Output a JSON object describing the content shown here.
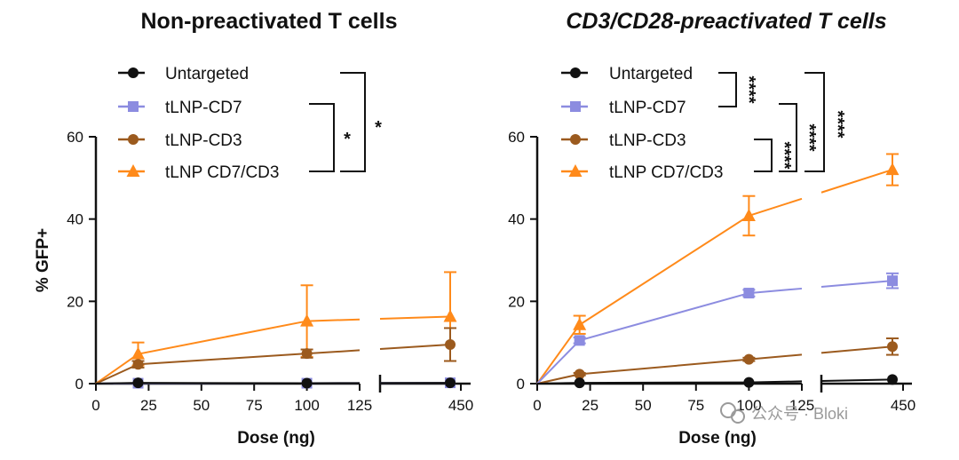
{
  "colors": {
    "untargeted": "#111111",
    "cd7": "#8c8ce0",
    "cd3": "#9b5a1e",
    "cd7cd3": "#ff8a1a",
    "axis": "#111111"
  },
  "watermark": "公众号 · Bloki",
  "chart_data": [
    {
      "type": "line",
      "title": "Non-preactivated T cells",
      "title_italic": false,
      "xlabel": "Dose (ng)",
      "ylabel": "% GFP+",
      "xlim_segment1": [
        0,
        125
      ],
      "xlim_segment2_tick": 450,
      "ylim": [
        0,
        60
      ],
      "yticks": [
        "0",
        "20",
        "40",
        "60"
      ],
      "xticks": [
        "0",
        "25",
        "50",
        "75",
        "100",
        "125",
        "450"
      ],
      "legend": [
        "Untargeted",
        "tLNP-CD7",
        "tLNP-CD3",
        "tLNP CD7/CD3"
      ],
      "significance": [
        {
          "between": [
            "tLNP-CD7",
            "tLNP CD7/CD3"
          ],
          "label": "*"
        },
        {
          "between": [
            "Untargeted",
            "tLNP CD7/CD3"
          ],
          "label": "*"
        }
      ],
      "series": [
        {
          "name": "Untargeted",
          "key": "untargeted",
          "marker": "circle",
          "points": [
            {
              "x": 0,
              "y": 0
            },
            {
              "x": 20,
              "y": 0.2
            },
            {
              "x": 100,
              "y": 0.1
            },
            {
              "x": 400,
              "y": 0.2
            }
          ],
          "err": [
            0,
            0,
            0,
            0
          ]
        },
        {
          "name": "tLNP-CD7",
          "key": "cd7",
          "marker": "square",
          "points": [
            {
              "x": 0,
              "y": 0
            },
            {
              "x": 20,
              "y": 0.1
            },
            {
              "x": 100,
              "y": 0.1
            },
            {
              "x": 400,
              "y": 0.2
            }
          ],
          "err": [
            0,
            0,
            0,
            0
          ]
        },
        {
          "name": "tLNP-CD3",
          "key": "cd3",
          "marker": "circle",
          "points": [
            {
              "x": 0,
              "y": 0
            },
            {
              "x": 20,
              "y": 4.7
            },
            {
              "x": 100,
              "y": 7.3
            },
            {
              "x": 400,
              "y": 9.5
            }
          ],
          "err": [
            0,
            0.8,
            1.0,
            4.0
          ]
        },
        {
          "name": "tLNP CD7/CD3",
          "key": "cd7cd3",
          "marker": "triangle",
          "points": [
            {
              "x": 0,
              "y": 0
            },
            {
              "x": 20,
              "y": 7.2
            },
            {
              "x": 100,
              "y": 15.2
            },
            {
              "x": 400,
              "y": 16.3
            }
          ],
          "err": [
            0,
            2.8,
            8.7,
            10.8
          ]
        }
      ]
    },
    {
      "type": "line",
      "title": "CD3/CD28-preactivated T cells",
      "title_italic": true,
      "xlabel": "Dose (ng)",
      "ylabel": "",
      "xlim_segment1": [
        0,
        125
      ],
      "xlim_segment2_tick": 450,
      "ylim": [
        0,
        60
      ],
      "yticks": [
        "0",
        "20",
        "40",
        "60"
      ],
      "xticks": [
        "0",
        "25",
        "50",
        "75",
        "100",
        "125",
        "450"
      ],
      "legend": [
        "Untargeted",
        "tLNP-CD7",
        "tLNP-CD3",
        "tLNP CD7/CD3"
      ],
      "significance": [
        {
          "between": [
            "Untargeted",
            "tLNP-CD7"
          ],
          "label": "****"
        },
        {
          "between": [
            "tLNP-CD3",
            "tLNP CD7/CD3"
          ],
          "label": "****"
        },
        {
          "between": [
            "tLNP-CD7",
            "tLNP CD7/CD3"
          ],
          "label": "****"
        },
        {
          "between": [
            "Untargeted",
            "tLNP CD7/CD3"
          ],
          "label": "****"
        }
      ],
      "series": [
        {
          "name": "Untargeted",
          "key": "untargeted",
          "marker": "circle",
          "points": [
            {
              "x": 0,
              "y": 0
            },
            {
              "x": 20,
              "y": 0.2
            },
            {
              "x": 100,
              "y": 0.3
            },
            {
              "x": 400,
              "y": 1.0
            }
          ],
          "err": [
            0,
            0,
            0,
            0
          ]
        },
        {
          "name": "tLNP-CD7",
          "key": "cd7",
          "marker": "square",
          "points": [
            {
              "x": 0,
              "y": 0
            },
            {
              "x": 20,
              "y": 10.5
            },
            {
              "x": 100,
              "y": 22.0
            },
            {
              "x": 400,
              "y": 25.0
            }
          ],
          "err": [
            0,
            0.7,
            0.8,
            1.8
          ]
        },
        {
          "name": "tLNP-CD3",
          "key": "cd3",
          "marker": "circle",
          "points": [
            {
              "x": 0,
              "y": 0
            },
            {
              "x": 20,
              "y": 2.3
            },
            {
              "x": 100,
              "y": 5.9
            },
            {
              "x": 400,
              "y": 9.0
            }
          ],
          "err": [
            0,
            0.3,
            0.4,
            2.0
          ]
        },
        {
          "name": "tLNP CD7/CD3",
          "key": "cd7cd3",
          "marker": "triangle",
          "points": [
            {
              "x": 0,
              "y": 0
            },
            {
              "x": 20,
              "y": 14.3
            },
            {
              "x": 100,
              "y": 40.8
            },
            {
              "x": 400,
              "y": 52.0
            }
          ],
          "err": [
            0,
            2.2,
            4.8,
            3.8
          ]
        }
      ]
    }
  ]
}
